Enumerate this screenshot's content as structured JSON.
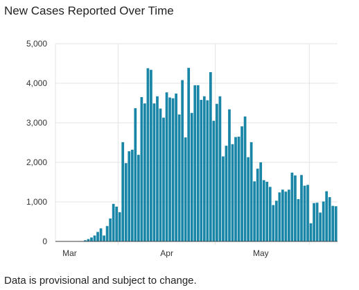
{
  "title": "New Cases Reported Over Time",
  "footnote": "Data is provisional and subject to change.",
  "colors": {
    "bar": "#1a86a7",
    "grid": "#e3e3e3",
    "axis": "#444444"
  },
  "chart_data": {
    "type": "bar",
    "title": "New Cases Reported Over Time",
    "xlabel": "",
    "ylabel": "",
    "ylim": [
      0,
      5000
    ],
    "yticks": [
      0,
      1000,
      2000,
      3000,
      4000,
      5000
    ],
    "ytick_labels": [
      "0",
      "1,000",
      "2,000",
      "3,000",
      "4,000",
      "5,000"
    ],
    "xtick_labels": [
      "Mar",
      "Apr",
      "May"
    ],
    "xtick_day_index": [
      20,
      51,
      81
    ],
    "grid": true,
    "legend": "none",
    "values": [
      10,
      10,
      10,
      10,
      10,
      10,
      10,
      10,
      10,
      30,
      60,
      100,
      150,
      240,
      330,
      150,
      390,
      580,
      950,
      880,
      740,
      2510,
      1980,
      2280,
      2320,
      3370,
      2190,
      3650,
      3490,
      4380,
      4340,
      3490,
      3670,
      3360,
      3130,
      3770,
      3640,
      3620,
      3740,
      3210,
      4080,
      2630,
      4390,
      3250,
      3950,
      3950,
      3580,
      3670,
      3570,
      4280,
      3050,
      3480,
      3670,
      2150,
      2420,
      3340,
      2460,
      2640,
      2650,
      2910,
      3160,
      2130,
      2510,
      1520,
      1840,
      2000,
      1550,
      1510,
      1380,
      920,
      1030,
      1240,
      1310,
      1260,
      1310,
      1740,
      1670,
      1070,
      1680,
      1410,
      1430,
      460,
      970,
      980,
      730,
      1010,
      1270,
      1120,
      900,
      890
    ]
  }
}
